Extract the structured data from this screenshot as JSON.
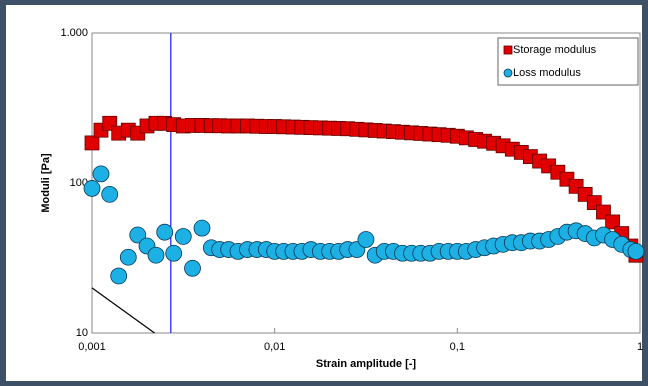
{
  "chart_data": {
    "type": "scatter",
    "xlabel": "Strain amplitude [-]",
    "ylabel": "Moduli [Pa]",
    "xscale": "log",
    "yscale": "log",
    "xlim": [
      0.001,
      1
    ],
    "ylim": [
      10,
      1000
    ],
    "xticks": [
      {
        "value": 0.001,
        "label": "0,001"
      },
      {
        "value": 0.01,
        "label": "0,01"
      },
      {
        "value": 0.1,
        "label": "0,1"
      },
      1
    ],
    "yticks": [
      10,
      100,
      {
        "value": 1000,
        "label": "1.000"
      }
    ],
    "legend": "upper right",
    "x": [
      0.001,
      0.00112,
      0.00125,
      0.0014,
      0.00158,
      0.00178,
      0.002,
      0.00224,
      0.0025,
      0.0028,
      0.00316,
      0.00355,
      0.004,
      0.0045,
      0.005,
      0.0056,
      0.0063,
      0.0071,
      0.008,
      0.009,
      0.01,
      0.0112,
      0.0126,
      0.0141,
      0.0158,
      0.0178,
      0.02,
      0.0224,
      0.0251,
      0.0282,
      0.0316,
      0.0355,
      0.0398,
      0.0447,
      0.0501,
      0.0562,
      0.0631,
      0.0708,
      0.0794,
      0.0891,
      0.1,
      0.112,
      0.126,
      0.141,
      0.158,
      0.178,
      0.2,
      0.224,
      0.251,
      0.282,
      0.316,
      0.355,
      0.398,
      0.447,
      0.501,
      0.562,
      0.631,
      0.708,
      0.794,
      0.891,
      0.95
    ],
    "series": [
      {
        "name": "Storage modulus",
        "color": "#e00000",
        "marker": "square",
        "values": [
          185,
          225,
          250,
          215,
          225,
          215,
          240,
          250,
          250,
          245,
          240,
          242,
          242,
          241,
          241,
          240,
          240,
          240,
          239,
          238,
          238,
          237,
          236,
          235,
          234,
          233,
          232,
          231,
          230,
          228,
          226,
          224,
          222,
          220,
          218,
          216,
          214,
          212,
          210,
          208,
          205,
          200,
          195,
          190,
          184,
          177,
          168,
          160,
          150,
          140,
          130,
          118,
          106,
          95,
          84,
          74,
          64,
          55,
          46,
          38,
          33
        ]
      },
      {
        "name": "Loss modulus",
        "color": "#1cb0e4",
        "marker": "circle",
        "values": [
          92,
          115,
          84,
          24,
          32,
          45,
          38,
          33,
          47,
          34,
          44,
          27,
          50,
          37,
          36,
          36,
          35,
          36,
          36,
          36,
          35,
          35,
          35,
          35,
          36,
          35,
          35,
          35,
          36,
          36,
          42,
          33,
          35,
          35,
          34,
          34,
          34,
          34,
          35,
          35,
          35,
          35,
          36,
          37,
          38,
          39,
          40,
          40,
          41,
          41,
          42,
          44,
          47,
          48,
          46,
          43,
          45,
          42,
          39,
          36,
          35
        ]
      }
    ],
    "reference_lines": [
      {
        "x": [
          0.0027,
          0.0027
        ],
        "y": [
          10,
          1000
        ],
        "color": "#1a1aff"
      },
      {
        "x": [
          0.001,
          0.0022
        ],
        "y": [
          20,
          10
        ],
        "color": "#000000"
      }
    ]
  }
}
